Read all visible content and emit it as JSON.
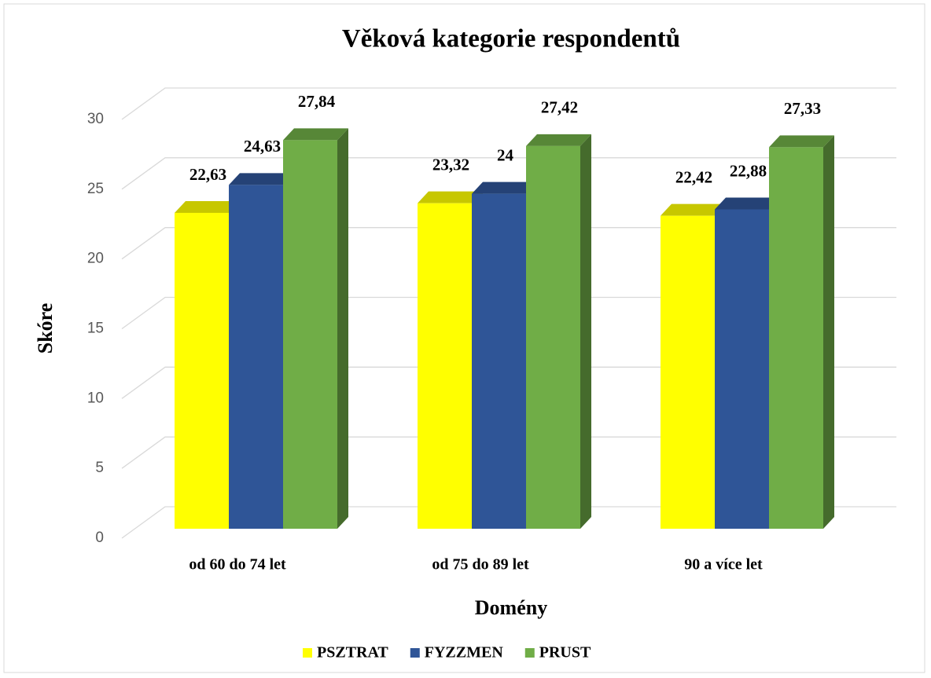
{
  "chart_data": {
    "type": "bar3d",
    "title": "Věková kategorie respondentů",
    "xlabel": "Domény",
    "ylabel": "Skóre",
    "categories": [
      "od 60 do 74 let",
      "od 75 do 89 let",
      "90 a více let"
    ],
    "series": [
      {
        "name": "PSZTRAT",
        "color": "#ffff00",
        "values": [
          22.63,
          23.32,
          22.42
        ],
        "value_labels": [
          "22,63",
          "23,32",
          "22,42"
        ]
      },
      {
        "name": "FYZZMEN",
        "color": "#2f5597",
        "values": [
          24.63,
          24,
          22.88
        ],
        "value_labels": [
          "24,63",
          "24",
          "22,88"
        ]
      },
      {
        "name": "PRUST",
        "color": "#70ad47",
        "values": [
          27.84,
          27.42,
          27.33
        ],
        "value_labels": [
          "27,84",
          "27,42",
          "27,33"
        ]
      }
    ],
    "ylim": [
      0,
      30
    ],
    "yticks": [
      0,
      5,
      10,
      15,
      20,
      25,
      30
    ],
    "grid": true,
    "legend": "bottom"
  }
}
